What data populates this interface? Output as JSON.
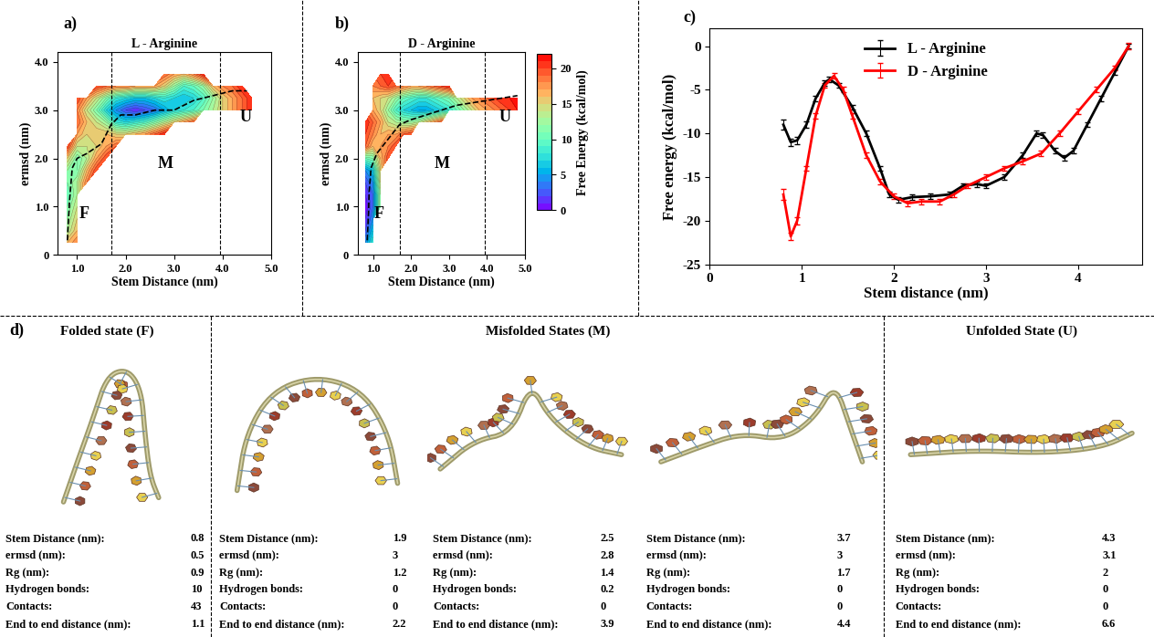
{
  "chart_data": [
    {
      "type": "contour",
      "panel_label": "a)",
      "title": "L - Arginine",
      "x_label": "Stem Distance (nm)",
      "y_label": "ermsd (nm)",
      "xlim": [
        0.6,
        5.0
      ],
      "xticks": [
        {
          "value": 1,
          "label": "1.0"
        },
        {
          "value": 2,
          "label": "2.0"
        },
        {
          "value": 3,
          "label": "3.0"
        },
        {
          "value": 4,
          "label": "4.0"
        },
        {
          "value": 5,
          "label": "5.0"
        }
      ],
      "ylim": [
        0,
        4.2
      ],
      "yticks": [
        0,
        {
          "value": 1,
          "label": "1.0"
        },
        {
          "value": 2,
          "label": "2.0"
        },
        {
          "value": 3,
          "label": "3.0"
        },
        {
          "value": 4,
          "label": "4.0"
        }
      ],
      "x": [
        0.8,
        1.0,
        1.2,
        1.4,
        1.6,
        1.8,
        2.0,
        2.2,
        2.4,
        2.6,
        2.8,
        3.0,
        3.2,
        3.4,
        3.6,
        3.8,
        4.0,
        4.2,
        4.4,
        4.6,
        4.8
      ],
      "y": [
        0.25,
        0.5,
        0.75,
        1.0,
        1.25,
        1.5,
        1.75,
        2.0,
        2.25,
        2.5,
        2.75,
        3.0,
        3.25,
        3.5,
        3.75
      ],
      "cells": [
        [
          16,
          18,
          null,
          null,
          null,
          null,
          null,
          null,
          null,
          null,
          null,
          null,
          null,
          null,
          null,
          null,
          null,
          null,
          null,
          null,
          null
        ],
        [
          13,
          16,
          null,
          null,
          null,
          null,
          null,
          null,
          null,
          null,
          null,
          null,
          null,
          null,
          null,
          null,
          null,
          null,
          null,
          null,
          null
        ],
        [
          12,
          15,
          null,
          null,
          null,
          null,
          null,
          null,
          null,
          null,
          null,
          null,
          null,
          null,
          null,
          null,
          null,
          null,
          null,
          null,
          null
        ],
        [
          11,
          14,
          null,
          null,
          null,
          null,
          null,
          null,
          null,
          null,
          null,
          null,
          null,
          null,
          null,
          null,
          null,
          null,
          null,
          null,
          null
        ],
        [
          10,
          13,
          null,
          null,
          null,
          null,
          null,
          null,
          null,
          null,
          null,
          null,
          null,
          null,
          null,
          null,
          null,
          null,
          null,
          null,
          null
        ],
        [
          11,
          13,
          18,
          null,
          null,
          null,
          null,
          null,
          null,
          null,
          null,
          null,
          null,
          null,
          null,
          null,
          null,
          null,
          null,
          null,
          null
        ],
        [
          12,
          11,
          16,
          20,
          null,
          null,
          null,
          null,
          null,
          null,
          null,
          null,
          null,
          null,
          null,
          null,
          null,
          null,
          null,
          null,
          null
        ],
        [
          15,
          11,
          13,
          17,
          20,
          null,
          null,
          null,
          null,
          null,
          null,
          null,
          null,
          null,
          null,
          null,
          null,
          null,
          null,
          null,
          null
        ],
        [
          20,
          14,
          14,
          15,
          17,
          19,
          null,
          null,
          null,
          null,
          null,
          null,
          null,
          null,
          null,
          null,
          null,
          null,
          null,
          null,
          null
        ],
        [
          null,
          17,
          15,
          16,
          16,
          15,
          15,
          16,
          17,
          19,
          21,
          null,
          null,
          null,
          null,
          null,
          null,
          null,
          null,
          null,
          null
        ],
        [
          null,
          19,
          16,
          14,
          12,
          8,
          7,
          8,
          9,
          11,
          13,
          15,
          17,
          19,
          null,
          null,
          null,
          null,
          null,
          null,
          null
        ],
        [
          null,
          18,
          14,
          11,
          7,
          4,
          2,
          1,
          2,
          3,
          5,
          7,
          8,
          9,
          11,
          13,
          15,
          17,
          19,
          21,
          null
        ],
        [
          null,
          20,
          17,
          14,
          11,
          8,
          7,
          6,
          6,
          7,
          8,
          7,
          6,
          7,
          9,
          12,
          15,
          17,
          19,
          21,
          null
        ],
        [
          null,
          null,
          null,
          20,
          19,
          18,
          18,
          17,
          17,
          17,
          15,
          12,
          9,
          10,
          12,
          16,
          18,
          19,
          21,
          null,
          null
        ],
        [
          null,
          null,
          null,
          null,
          null,
          null,
          null,
          null,
          null,
          null,
          19,
          17,
          16,
          18,
          21,
          null,
          null,
          null,
          null,
          null,
          null
        ]
      ],
      "path": {
        "x": [
          0.8,
          0.82,
          0.85,
          0.9,
          1.0,
          1.2,
          1.5,
          1.7,
          1.9,
          2.2,
          2.6,
          3.0,
          3.4,
          3.8,
          4.2,
          4.5
        ],
        "y": [
          0.3,
          0.7,
          1.2,
          1.8,
          2.0,
          2.1,
          2.3,
          2.7,
          2.9,
          2.9,
          3.0,
          3.0,
          3.2,
          3.3,
          3.4,
          3.4
        ]
      },
      "boundaries": [
        1.7,
        3.95
      ],
      "regions": [
        "F",
        "M",
        "U"
      ]
    },
    {
      "type": "contour",
      "panel_label": "b)",
      "title": "D - Arginine",
      "x_label": "Stem Distance (nm)",
      "y_label": "ermsd (nm)",
      "xlim": [
        0.6,
        5.0
      ],
      "xticks": [
        {
          "value": 1,
          "label": "1.0"
        },
        {
          "value": 2,
          "label": "2.0"
        },
        {
          "value": 3,
          "label": "3.0"
        },
        {
          "value": 4,
          "label": "4.0"
        },
        {
          "value": 5,
          "label": "5.0"
        }
      ],
      "ylim": [
        0,
        4.2
      ],
      "yticks": [
        0,
        {
          "value": 1,
          "label": "1.0"
        },
        {
          "value": 2,
          "label": "2.0"
        },
        {
          "value": 3,
          "label": "3.0"
        },
        {
          "value": 4,
          "label": "4.0"
        }
      ],
      "x": [
        0.8,
        1.0,
        1.2,
        1.4,
        1.6,
        1.8,
        2.0,
        2.2,
        2.4,
        2.6,
        2.8,
        3.0,
        3.2,
        3.4,
        3.6,
        3.8,
        4.0,
        4.2,
        4.4,
        4.6,
        4.8
      ],
      "y": [
        0.25,
        0.5,
        0.75,
        1.0,
        1.25,
        1.5,
        1.75,
        2.0,
        2.25,
        2.5,
        2.75,
        3.0,
        3.25,
        3.5,
        3.75
      ],
      "cells": [
        [
          4,
          8,
          null,
          null,
          null,
          null,
          null,
          null,
          null,
          null,
          null,
          null,
          null,
          null,
          null,
          null,
          null,
          null,
          null,
          null,
          null
        ],
        [
          2,
          6,
          null,
          null,
          null,
          null,
          null,
          null,
          null,
          null,
          null,
          null,
          null,
          null,
          null,
          null,
          null,
          null,
          null,
          null,
          null
        ],
        [
          1,
          4,
          null,
          null,
          null,
          null,
          null,
          null,
          null,
          null,
          null,
          null,
          null,
          null,
          null,
          null,
          null,
          null,
          null,
          null,
          null
        ],
        [
          0,
          3,
          12,
          null,
          null,
          null,
          null,
          null,
          null,
          null,
          null,
          null,
          null,
          null,
          null,
          null,
          null,
          null,
          null,
          null,
          null
        ],
        [
          1,
          3,
          12,
          null,
          null,
          null,
          null,
          null,
          null,
          null,
          null,
          null,
          null,
          null,
          null,
          null,
          null,
          null,
          null,
          null,
          null
        ],
        [
          2,
          4,
          14,
          null,
          null,
          null,
          null,
          null,
          null,
          null,
          null,
          null,
          null,
          null,
          null,
          null,
          null,
          null,
          null,
          null,
          null
        ],
        [
          4,
          6,
          15,
          null,
          null,
          null,
          null,
          null,
          null,
          null,
          null,
          null,
          null,
          null,
          null,
          null,
          null,
          null,
          null,
          null,
          null
        ],
        [
          10,
          11,
          16,
          20,
          null,
          null,
          null,
          null,
          null,
          null,
          null,
          null,
          null,
          null,
          null,
          null,
          null,
          null,
          null,
          null,
          null
        ],
        [
          19,
          16,
          17,
          18,
          20,
          null,
          null,
          null,
          null,
          null,
          null,
          null,
          null,
          null,
          null,
          null,
          null,
          null,
          null,
          null,
          null
        ],
        [
          20,
          18,
          16,
          17,
          17,
          19,
          20,
          null,
          null,
          null,
          null,
          null,
          null,
          null,
          null,
          null,
          null,
          null,
          null,
          null,
          null
        ],
        [
          21,
          19,
          17,
          14,
          13,
          12,
          12,
          13,
          15,
          17,
          19,
          null,
          null,
          null,
          null,
          null,
          null,
          null,
          null,
          null,
          null
        ],
        [
          null,
          17,
          15,
          12,
          9,
          7,
          6,
          5,
          5,
          6,
          7,
          8,
          10,
          12,
          14,
          16,
          17,
          18,
          19,
          20,
          21
        ],
        [
          null,
          16,
          15,
          14,
          12,
          10,
          9,
          8,
          8,
          9,
          10,
          11,
          13,
          15,
          17,
          18,
          19,
          20,
          21,
          21,
          22
        ],
        [
          null,
          18,
          19,
          20,
          19,
          18,
          17,
          17,
          18,
          19,
          20,
          21,
          null,
          null,
          null,
          null,
          null,
          null,
          null,
          null,
          null
        ],
        [
          null,
          null,
          20,
          21,
          null,
          null,
          null,
          null,
          null,
          null,
          null,
          null,
          null,
          null,
          null,
          null,
          null,
          null,
          null,
          null,
          null
        ]
      ],
      "path": {
        "x": [
          0.85,
          0.88,
          0.9,
          0.95,
          1.1,
          1.4,
          1.7,
          2.0,
          2.4,
          2.8,
          3.2,
          3.6,
          4.0,
          4.4,
          4.8
        ],
        "y": [
          0.3,
          0.8,
          1.3,
          1.8,
          2.1,
          2.4,
          2.7,
          2.8,
          2.9,
          3.0,
          3.1,
          3.15,
          3.2,
          3.25,
          3.3
        ]
      },
      "boundaries": [
        1.7,
        3.95
      ],
      "regions": [
        "F",
        "M",
        "U"
      ],
      "colorbar_label": "Free Energy (kcal/mol)",
      "zlim": [
        0,
        22
      ],
      "zticks": [
        0,
        5,
        10,
        15,
        20
      ]
    },
    {
      "type": "line",
      "panel_label": "c)",
      "x_label": "Stem distance (nm)",
      "y_label": "Free energy (kcal/mol)",
      "xlim": [
        0,
        4.7
      ],
      "xticks": [
        0,
        1,
        2,
        3,
        4
      ],
      "ylim": [
        -25,
        2
      ],
      "yticks": [
        -25,
        -20,
        -15,
        -10,
        -5,
        0
      ],
      "legend": "upper center",
      "series": [
        {
          "name": "L - Arginine",
          "color": "#000000",
          "x": [
            0.8,
            0.88,
            0.95,
            1.05,
            1.15,
            1.25,
            1.3,
            1.4,
            1.55,
            1.7,
            1.85,
            1.95,
            2.05,
            2.2,
            2.4,
            2.6,
            2.75,
            2.9,
            3.0,
            3.2,
            3.4,
            3.55,
            3.62,
            3.75,
            3.85,
            3.95,
            4.1,
            4.25,
            4.4,
            4.55
          ],
          "values": [
            -9.0,
            -11.0,
            -10.8,
            -9.0,
            -6.0,
            -4.2,
            -3.8,
            -4.5,
            -7.0,
            -10.0,
            -14.0,
            -17.0,
            -17.6,
            -17.3,
            -17.2,
            -17.0,
            -16.0,
            -15.8,
            -16.0,
            -15.0,
            -12.5,
            -10.0,
            -10.2,
            -12.0,
            -12.8,
            -12.0,
            -9.0,
            -6.0,
            -3.0,
            0.0
          ],
          "errors": [
            0.6,
            0.4,
            0.4,
            0.4,
            0.3,
            0.3,
            0.3,
            0.3,
            0.3,
            0.3,
            0.3,
            0.3,
            0.3,
            0.3,
            0.3,
            0.3,
            0.3,
            0.3,
            0.3,
            0.3,
            0.3,
            0.3,
            0.3,
            0.3,
            0.3,
            0.3,
            0.3,
            0.3,
            0.3,
            0.3
          ]
        },
        {
          "name": "D - Arginine",
          "color": "#ff0000",
          "x": [
            0.8,
            0.88,
            0.95,
            1.05,
            1.15,
            1.25,
            1.35,
            1.45,
            1.55,
            1.7,
            1.85,
            2.0,
            2.15,
            2.3,
            2.5,
            2.65,
            2.8,
            3.0,
            3.2,
            3.4,
            3.6,
            3.8,
            4.0,
            4.2,
            4.4,
            4.55
          ],
          "values": [
            -17.0,
            -21.8,
            -20.0,
            -14.0,
            -8.0,
            -4.5,
            -3.4,
            -5.0,
            -8.0,
            -12.5,
            -15.5,
            -17.2,
            -18.0,
            -17.8,
            -17.8,
            -17.0,
            -16.0,
            -15.0,
            -14.0,
            -13.2,
            -12.3,
            -10.0,
            -7.5,
            -5.0,
            -2.5,
            0.0
          ],
          "errors": [
            0.6,
            0.4,
            0.4,
            0.3,
            0.3,
            0.3,
            0.3,
            0.3,
            0.3,
            0.3,
            0.3,
            0.3,
            0.3,
            0.3,
            0.3,
            0.3,
            0.3,
            0.3,
            0.3,
            0.3,
            0.3,
            0.3,
            0.3,
            0.3,
            0.3,
            0.4
          ]
        }
      ]
    }
  ],
  "structures": {
    "panel_label": "d)",
    "row_labels": [
      "Stem Distance (nm):",
      "ermsd (nm):",
      "Rg (nm):",
      "Hydrogen bonds:",
      "Contacts:",
      "End to end distance (nm):"
    ],
    "groups": [
      {
        "title": "Folded state (F)",
        "states": [
          {
            "values": [
              0.8,
              0.5,
              0.9,
              10,
              43,
              1.1
            ]
          }
        ]
      },
      {
        "title": "Misfolded States (M)",
        "states": [
          {
            "values": [
              1.9,
              3,
              1.2,
              0,
              0,
              2.2
            ]
          },
          {
            "values": [
              2.5,
              2.8,
              1.4,
              0.2,
              0,
              3.9
            ]
          },
          {
            "values": [
              3.7,
              3,
              1.7,
              0,
              0,
              4.4
            ]
          }
        ]
      },
      {
        "title": "Unfolded State (U)",
        "states": [
          {
            "values": [
              4.3,
              3.1,
              2,
              0,
              0,
              6.6
            ]
          }
        ]
      }
    ]
  }
}
